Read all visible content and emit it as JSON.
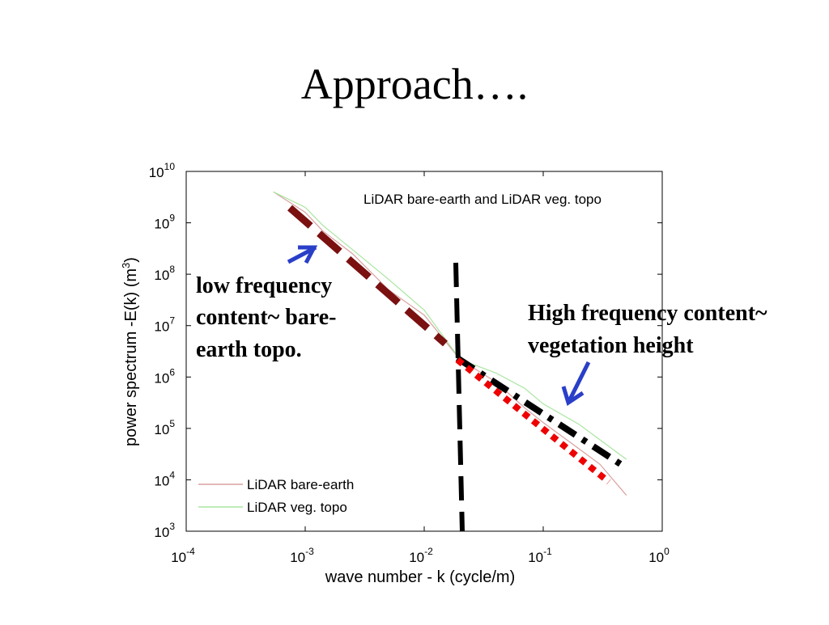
{
  "slide_title": "Approach….",
  "chart_data": {
    "type": "line",
    "title": "LiDAR bare-earth and LiDAR veg. topo",
    "x_label": "wave number - k (cycle/m)",
    "y_label": "power spectrum -E(k) (m",
    "y_label_sup": "3",
    "y_label_end": ")",
    "log_x": true,
    "log_y": true,
    "xlim": [
      0.0001,
      1
    ],
    "ylim": [
      1000,
      10000000000
    ],
    "xticks": [
      {
        "value": 0.0001,
        "label": "10",
        "exponent": "-4"
      },
      {
        "value": 0.001,
        "label": "10",
        "exponent": "-3"
      },
      {
        "value": 0.01,
        "label": "10",
        "exponent": "-2"
      },
      {
        "value": 0.1,
        "label": "10",
        "exponent": "-1"
      },
      {
        "value": 1,
        "label": "10",
        "exponent": "0"
      }
    ],
    "yticks": [
      {
        "value": 1000,
        "label": "10",
        "exponent": "3"
      },
      {
        "value": 10000,
        "label": "10",
        "exponent": "4"
      },
      {
        "value": 100000,
        "label": "10",
        "exponent": "5"
      },
      {
        "value": 1000000,
        "label": "10",
        "exponent": "6"
      },
      {
        "value": 10000000,
        "label": "10",
        "exponent": "7"
      },
      {
        "value": 100000000,
        "label": "10",
        "exponent": "8"
      },
      {
        "value": 1000000000,
        "label": "10",
        "exponent": "9"
      },
      {
        "value": 10000000000,
        "label": "10",
        "exponent": "10"
      }
    ],
    "x": [
      0.00054,
      0.001,
      0.0014,
      0.0025,
      0.005,
      0.01,
      0.02,
      0.04,
      0.07,
      0.1,
      0.2,
      0.3,
      0.5
    ],
    "series": [
      {
        "name": "LiDAR bare-earth",
        "color": "#d9a0a0",
        "values": [
          4000000000,
          1600000000,
          700000000,
          250000000,
          50000000,
          16000000,
          2200000,
          800000,
          250000,
          130000,
          40000,
          20000,
          5000
        ]
      },
      {
        "name": "LiDAR veg. topo",
        "color": "#a8e6a0",
        "values": [
          4000000000,
          2000000000,
          900000000,
          300000000,
          80000000,
          20000000,
          2200000,
          1200000,
          600000,
          300000,
          120000,
          60000,
          25000
        ]
      }
    ],
    "legend": "lower left",
    "annotations": [
      {
        "lines": [
          "low frequency",
          "content~ bare-",
          "earth topo."
        ]
      },
      {
        "lines": [
          "High frequency content~",
          "vegetation height"
        ]
      }
    ]
  }
}
